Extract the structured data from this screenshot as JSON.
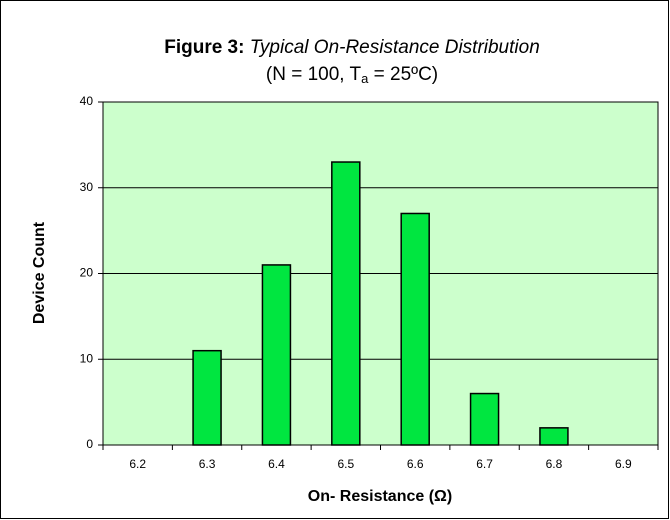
{
  "chart_data": {
    "type": "bar",
    "title_prefix": "Figure 3:",
    "title": "Typical On-Resistance Distribution",
    "subtitle": [
      "(N = 100, T",
      "a",
      " = 25ºC)"
    ],
    "xlabel": "On- Resistance  (Ω)",
    "ylabel": "Device Count",
    "categories": [
      "6.2",
      "6.3",
      "6.4",
      "6.5",
      "6.6",
      "6.7",
      "6.8",
      "6.9"
    ],
    "values": [
      0,
      11,
      21,
      33,
      27,
      6,
      2,
      0
    ],
    "color": "#00e640",
    "ylim": [
      0,
      40
    ],
    "yticks": [
      0,
      10,
      20,
      30,
      40
    ],
    "grid": true
  }
}
